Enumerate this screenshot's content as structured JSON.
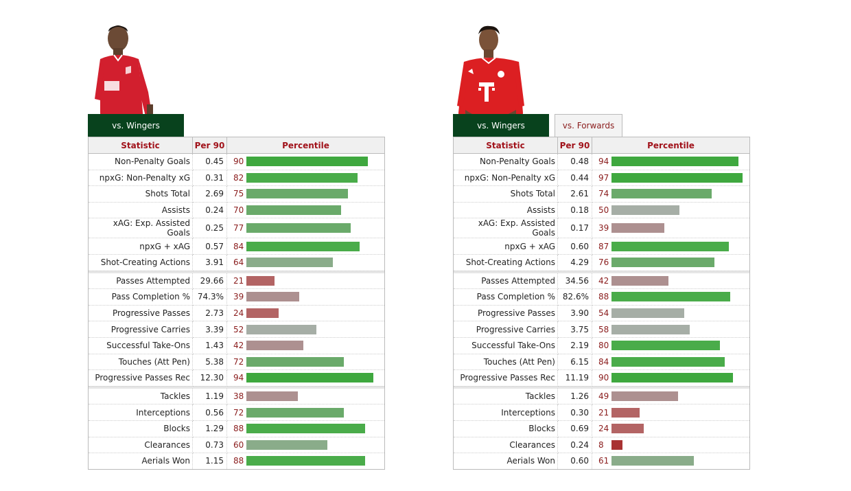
{
  "players": [
    {
      "tabs": [
        {
          "label": "vs. Wingers",
          "active": true
        }
      ],
      "headers": [
        "Statistic",
        "Per 90",
        "Percentile"
      ],
      "groups": [
        [
          {
            "stat": "Non-Penalty Goals",
            "per90": "0.45",
            "pct": 90
          },
          {
            "stat": "npxG: Non-Penalty xG",
            "per90": "0.31",
            "pct": 82
          },
          {
            "stat": "Shots Total",
            "per90": "2.69",
            "pct": 75
          },
          {
            "stat": "Assists",
            "per90": "0.24",
            "pct": 70
          },
          {
            "stat": "xAG: Exp. Assisted Goals",
            "per90": "0.25",
            "pct": 77
          },
          {
            "stat": "npxG + xAG",
            "per90": "0.57",
            "pct": 84
          },
          {
            "stat": "Shot-Creating Actions",
            "per90": "3.91",
            "pct": 64
          }
        ],
        [
          {
            "stat": "Passes Attempted",
            "per90": "29.66",
            "pct": 21
          },
          {
            "stat": "Pass Completion %",
            "per90": "74.3%",
            "pct": 39
          },
          {
            "stat": "Progressive Passes",
            "per90": "2.73",
            "pct": 24
          },
          {
            "stat": "Progressive Carries",
            "per90": "3.39",
            "pct": 52
          },
          {
            "stat": "Successful Take-Ons",
            "per90": "1.43",
            "pct": 42
          },
          {
            "stat": "Touches (Att Pen)",
            "per90": "5.38",
            "pct": 72
          },
          {
            "stat": "Progressive Passes Rec",
            "per90": "12.30",
            "pct": 94
          }
        ],
        [
          {
            "stat": "Tackles",
            "per90": "1.19",
            "pct": 38
          },
          {
            "stat": "Interceptions",
            "per90": "0.56",
            "pct": 72
          },
          {
            "stat": "Blocks",
            "per90": "1.29",
            "pct": 88
          },
          {
            "stat": "Clearances",
            "per90": "0.73",
            "pct": 60
          },
          {
            "stat": "Aerials Won",
            "per90": "1.15",
            "pct": 88
          }
        ]
      ]
    },
    {
      "tabs": [
        {
          "label": "vs. Wingers",
          "active": true
        },
        {
          "label": "vs. Forwards",
          "active": false
        }
      ],
      "headers": [
        "Statistic",
        "Per 90",
        "Percentile"
      ],
      "groups": [
        [
          {
            "stat": "Non-Penalty Goals",
            "per90": "0.48",
            "pct": 94
          },
          {
            "stat": "npxG: Non-Penalty xG",
            "per90": "0.44",
            "pct": 97
          },
          {
            "stat": "Shots Total",
            "per90": "2.61",
            "pct": 74
          },
          {
            "stat": "Assists",
            "per90": "0.18",
            "pct": 50
          },
          {
            "stat": "xAG: Exp. Assisted Goals",
            "per90": "0.17",
            "pct": 39
          },
          {
            "stat": "npxG + xAG",
            "per90": "0.60",
            "pct": 87
          },
          {
            "stat": "Shot-Creating Actions",
            "per90": "4.29",
            "pct": 76
          }
        ],
        [
          {
            "stat": "Passes Attempted",
            "per90": "34.56",
            "pct": 42
          },
          {
            "stat": "Pass Completion %",
            "per90": "82.6%",
            "pct": 88
          },
          {
            "stat": "Progressive Passes",
            "per90": "3.90",
            "pct": 54
          },
          {
            "stat": "Progressive Carries",
            "per90": "3.75",
            "pct": 58
          },
          {
            "stat": "Successful Take-Ons",
            "per90": "2.19",
            "pct": 80
          },
          {
            "stat": "Touches (Att Pen)",
            "per90": "6.15",
            "pct": 84
          },
          {
            "stat": "Progressive Passes Rec",
            "per90": "11.19",
            "pct": 90
          }
        ],
        [
          {
            "stat": "Tackles",
            "per90": "1.26",
            "pct": 49
          },
          {
            "stat": "Interceptions",
            "per90": "0.30",
            "pct": 21
          },
          {
            "stat": "Blocks",
            "per90": "0.69",
            "pct": 24
          },
          {
            "stat": "Clearances",
            "per90": "0.24",
            "pct": 8
          },
          {
            "stat": "Aerials Won",
            "per90": "0.60",
            "pct": 61
          }
        ]
      ]
    }
  ]
}
